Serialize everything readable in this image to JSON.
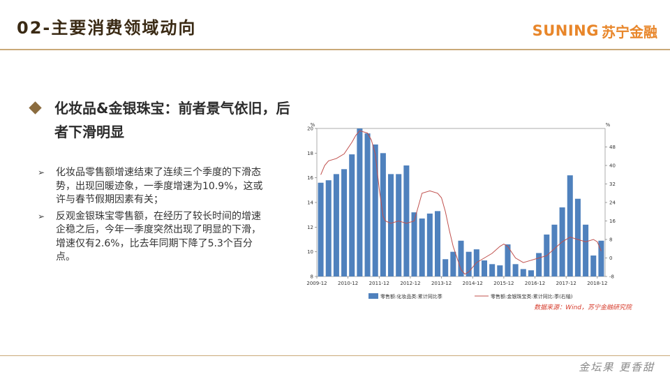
{
  "header": {
    "title": "02-主要消费领域动向",
    "logo_latin": "SUNING",
    "logo_cn": "苏宁金融"
  },
  "section": {
    "heading": "化妆品&金银珠宝：前者景气依旧，后者下滑明显",
    "bullets": [
      {
        "marker": "➢",
        "text": "化妆品零售额增速结束了连续三个季度的下滑态势，出现回暖迹象，一季度增速为10.9%，这或许与春节假期因素有关；"
      },
      {
        "marker": "➢",
        "text": "反观金银珠宝零售额，在经历了较长时间的增速企稳之后，今年一季度突然出现了明显的下滑，增速仅有2.6%，比去年同期下降了5.3个百分点。"
      }
    ]
  },
  "footer": {
    "signature": "金坛果 更香甜"
  },
  "chart_data": {
    "type": "bar+line",
    "left_unit": "%",
    "right_unit": "%",
    "y_left": {
      "min": 8,
      "max": 20,
      "ticks": [
        8,
        10,
        12,
        14,
        16,
        18,
        20
      ]
    },
    "y_right": {
      "min": -8,
      "max": 56,
      "ticks": [
        -8,
        0,
        8,
        16,
        24,
        32,
        40,
        48
      ]
    },
    "x_ticks": [
      "2009-12",
      "2010-12",
      "2011-12",
      "2012-12",
      "2013-12",
      "2014-12",
      "2015-12",
      "2016-12",
      "2017-12",
      "2018-12"
    ],
    "bar_series": {
      "name": "零售额:化妆品类:累计同比季",
      "color": "#4f81bd",
      "values": [
        15.6,
        15.8,
        16.3,
        16.7,
        17.9,
        20.0,
        19.6,
        18.7,
        18.0,
        16.3,
        16.3,
        17.0,
        13.2,
        12.7,
        13.1,
        13.3,
        9.4,
        10.0,
        10.9,
        10.0,
        10.2,
        9.3,
        9.0,
        8.9,
        10.6,
        9.0,
        8.6,
        8.5,
        9.9,
        11.4,
        12.2,
        13.6,
        16.2,
        14.3,
        12.2,
        9.7,
        10.9
      ]
    },
    "line_series": {
      "name": "零售额:金银珠宝类:累计同比:季(右轴)",
      "color": "#c0504d",
      "x": [
        0,
        0.5,
        1,
        2,
        3,
        4,
        4.5,
        5,
        6,
        6.5,
        7,
        7.5,
        8,
        8.3,
        9,
        10,
        11,
        12,
        12.5,
        13,
        14,
        15,
        15.5,
        16,
        16.5,
        17,
        18,
        18.5,
        19,
        20,
        21,
        22,
        23,
        23.5,
        24,
        25,
        26,
        27,
        28,
        29,
        30,
        31,
        32,
        33,
        34,
        35,
        35.5,
        36
      ],
      "values": [
        36,
        40,
        42,
        43,
        45,
        50,
        53,
        55,
        54,
        51,
        45,
        30,
        18,
        16,
        15,
        16,
        15,
        16,
        22,
        28,
        29,
        28,
        26,
        20,
        12,
        5,
        -5,
        -7,
        -6,
        -2,
        0,
        2,
        5,
        6,
        5,
        0,
        -2,
        -1,
        0,
        1,
        4,
        7,
        9,
        8,
        7,
        8,
        7,
        3
      ]
    },
    "source": "数据来源：Wind，苏宁金融研究院"
  }
}
